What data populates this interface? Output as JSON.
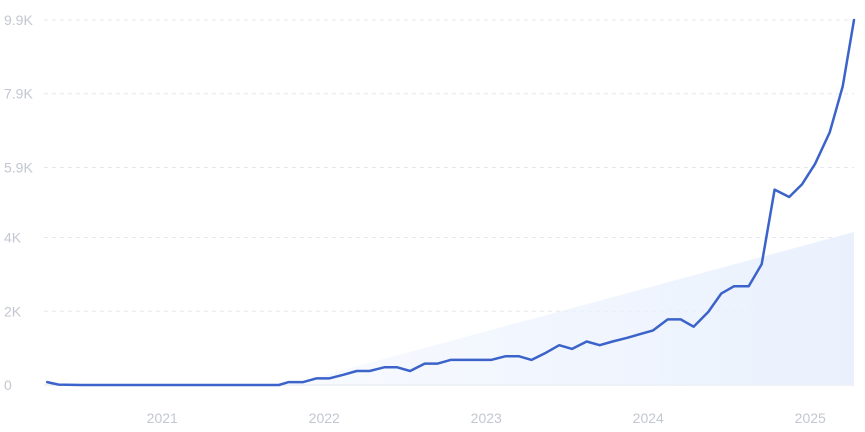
{
  "chart_data": {
    "type": "line",
    "title": "",
    "xlabel": "",
    "ylabel": "",
    "x_ticks": [
      {
        "label": "2021",
        "value": 2021.0
      },
      {
        "label": "2022",
        "value": 2022.0
      },
      {
        "label": "2023",
        "value": 2023.0
      },
      {
        "label": "2024",
        "value": 2024.0
      },
      {
        "label": "2025",
        "value": 2025.0
      }
    ],
    "y_ticks": [
      {
        "label": "0",
        "value": 0
      },
      {
        "label": "2K",
        "value": 2000
      },
      {
        "label": "4K",
        "value": 4000
      },
      {
        "label": "5.9K",
        "value": 5900
      },
      {
        "label": "7.9K",
        "value": 7900
      },
      {
        "label": "9.9K",
        "value": 9900
      }
    ],
    "xlim": [
      2020.27,
      2025.27
    ],
    "ylim": [
      0,
      9900
    ],
    "grid": true,
    "colors": {
      "line": "#3b63c9",
      "trend_fill": "#eaf1fd",
      "grid": "#e6e8ec",
      "tick_text": "#c3c7cf"
    },
    "series": [
      {
        "points": [
          [
            2020.29,
            80
          ],
          [
            2020.36,
            10
          ],
          [
            2020.5,
            0
          ],
          [
            2021.0,
            0
          ],
          [
            2021.5,
            0
          ],
          [
            2021.67,
            0
          ],
          [
            2021.72,
            0
          ],
          [
            2021.78,
            80
          ],
          [
            2021.87,
            80
          ],
          [
            2021.95,
            180
          ],
          [
            2022.03,
            180
          ],
          [
            2022.12,
            280
          ],
          [
            2022.2,
            380
          ],
          [
            2022.28,
            380
          ],
          [
            2022.37,
            480
          ],
          [
            2022.45,
            480
          ],
          [
            2022.53,
            380
          ],
          [
            2022.62,
            580
          ],
          [
            2022.7,
            580
          ],
          [
            2022.78,
            680
          ],
          [
            2022.87,
            680
          ],
          [
            2022.95,
            680
          ],
          [
            2023.03,
            680
          ],
          [
            2023.12,
            780
          ],
          [
            2023.2,
            780
          ],
          [
            2023.28,
            680
          ],
          [
            2023.37,
            880
          ],
          [
            2023.45,
            1080
          ],
          [
            2023.53,
            980
          ],
          [
            2023.62,
            1180
          ],
          [
            2023.7,
            1080
          ],
          [
            2023.78,
            1180
          ],
          [
            2023.87,
            1280
          ],
          [
            2023.95,
            1380
          ],
          [
            2024.03,
            1480
          ],
          [
            2024.12,
            1780
          ],
          [
            2024.2,
            1780
          ],
          [
            2024.28,
            1580
          ],
          [
            2024.37,
            1980
          ],
          [
            2024.45,
            2480
          ],
          [
            2024.53,
            2680
          ],
          [
            2024.62,
            2680
          ],
          [
            2024.7,
            3280
          ],
          [
            2024.78,
            5300
          ],
          [
            2024.87,
            5100
          ],
          [
            2024.95,
            5450
          ],
          [
            2025.03,
            6000
          ],
          [
            2025.12,
            6850
          ],
          [
            2025.2,
            8100
          ],
          [
            2025.27,
            9900
          ]
        ]
      }
    ],
    "trend_area": [
      [
        2021.77,
        0
      ],
      [
        2025.27,
        4150
      ],
      [
        2025.27,
        0
      ]
    ]
  }
}
